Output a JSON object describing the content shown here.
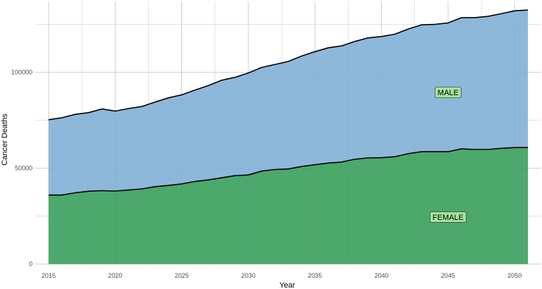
{
  "chart_data": {
    "type": "area",
    "stacked": true,
    "xlabel": "Year",
    "ylabel": "Cancer Deaths",
    "xlim": [
      2014,
      2052
    ],
    "ylim": [
      -500,
      137000
    ],
    "x_ticks": [
      2015,
      2020,
      2025,
      2030,
      2035,
      2040,
      2045,
      2050
    ],
    "y_ticks": [
      0,
      50000,
      100000
    ],
    "y_tick_labels": [
      "0",
      "50000",
      "100000"
    ],
    "grid": true,
    "x": [
      2015,
      2016,
      2017,
      2018,
      2019,
      2020,
      2021,
      2022,
      2023,
      2024,
      2025,
      2026,
      2027,
      2028,
      2029,
      2030,
      2031,
      2032,
      2033,
      2034,
      2035,
      2036,
      2037,
      2038,
      2039,
      2040,
      2041,
      2042,
      2043,
      2044,
      2045,
      2046,
      2047,
      2048,
      2049,
      2050,
      2051
    ],
    "series": [
      {
        "name": "FEMALE",
        "color": "#2e9952",
        "values": [
          36000,
          36000,
          37200,
          38000,
          38300,
          38100,
          38600,
          39200,
          40400,
          41000,
          41800,
          43100,
          43900,
          45000,
          46100,
          46500,
          48500,
          49300,
          49600,
          50900,
          51800,
          52700,
          53200,
          54700,
          55400,
          55500,
          56000,
          57600,
          58600,
          58600,
          58600,
          60100,
          59800,
          59800,
          60400,
          60800,
          60800
        ]
      },
      {
        "name": "MALE",
        "color": "#7aabd4",
        "values": [
          39300,
          40300,
          40900,
          41000,
          42600,
          41700,
          42500,
          43000,
          44100,
          45700,
          46500,
          47700,
          49200,
          50900,
          51300,
          53200,
          54100,
          54800,
          56100,
          57600,
          59000,
          60100,
          60600,
          61400,
          62600,
          63200,
          63900,
          65000,
          66200,
          66400,
          67200,
          68400,
          68700,
          69400,
          70200,
          71300,
          71700
        ]
      }
    ],
    "annotations": [
      "MALE",
      "FEMALE"
    ]
  },
  "colors": {
    "panel_background": "#ffffff",
    "grid": "#c8c8c8",
    "outline": "#000000",
    "label_fill": "#a6e59c"
  }
}
